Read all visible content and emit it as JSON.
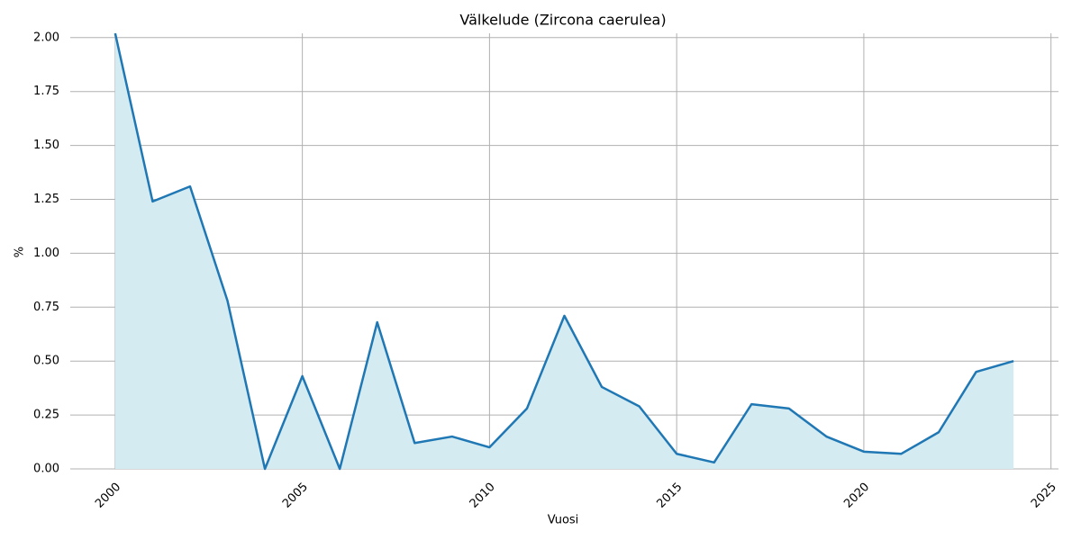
{
  "chart_data": {
    "type": "area",
    "title": "Välkelude (Zircona caerulea)",
    "x_label": "Vuosi",
    "y_label": "%",
    "x": [
      2000,
      2001,
      2002,
      2003,
      2004,
      2005,
      2006,
      2007,
      2008,
      2009,
      2010,
      2011,
      2012,
      2013,
      2014,
      2015,
      2016,
      2017,
      2018,
      2019,
      2020,
      2021,
      2022,
      2023,
      2024
    ],
    "values": [
      2.02,
      1.24,
      1.31,
      0.78,
      0.0,
      0.43,
      0.0,
      0.68,
      0.12,
      0.15,
      0.1,
      0.28,
      0.71,
      0.38,
      0.29,
      0.07,
      0.03,
      0.3,
      0.28,
      0.15,
      0.08,
      0.07,
      0.17,
      0.45,
      0.5
    ],
    "color": "#1f77b4",
    "fill_color": "#d4ebf2",
    "xlim": [
      1998.8,
      2025.2
    ],
    "ylim": [
      0,
      2.02
    ],
    "xticks": [
      2000,
      2005,
      2010,
      2015,
      2020,
      2025
    ],
    "yticks": [
      {
        "value": 0,
        "label": "0.00"
      },
      {
        "value": 0.25,
        "label": "0.25"
      },
      {
        "value": 0.5,
        "label": "0.50"
      },
      {
        "value": 0.75,
        "label": "0.75"
      },
      {
        "value": 1,
        "label": "1.00"
      },
      {
        "value": 1.25,
        "label": "1.25"
      },
      {
        "value": 1.5,
        "label": "1.50"
      },
      {
        "value": 1.75,
        "label": "1.75"
      },
      {
        "value": 2,
        "label": "2.00"
      }
    ],
    "grid": true
  }
}
